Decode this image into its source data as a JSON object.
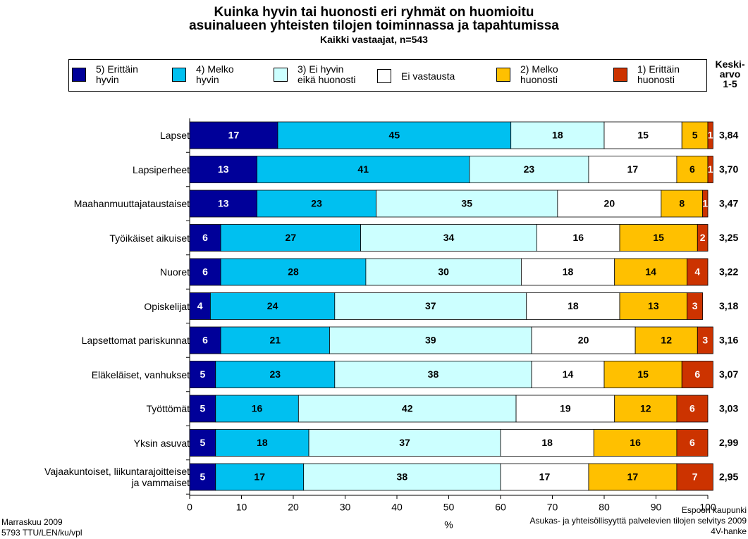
{
  "chart_data": {
    "type": "stacked-bar-horizontal",
    "title": "Kuinka hyvin tai huonosti eri ryhmät on huomioitu\nasuinalueen yhteisten tilojen toiminnassa ja tapahtumissa",
    "subtitle": "Kaikki vastaajat, n=543",
    "xlabel": "%",
    "xlim": [
      0,
      100
    ],
    "xticks": [
      0,
      10,
      20,
      30,
      40,
      50,
      60,
      70,
      80,
      90,
      100
    ],
    "categories": [
      "Lapset",
      "Lapsiperheet",
      "Maahanmuuttajataustaiset",
      "Työikäiset aikuiset",
      "Nuoret",
      "Opiskelijat",
      "Lapsettomat pariskunnat",
      "Eläkeläiset, vanhukset",
      "Työttömät",
      "Yksin asuvat",
      "Vajaakuntoiset, liikuntarajoitteiset\nja vammaiset"
    ],
    "series": [
      {
        "name": "5) Erittäin\nhyvin",
        "color": "#000099",
        "label_color": "#ffffff",
        "values": [
          17,
          13,
          13,
          6,
          6,
          4,
          6,
          5,
          5,
          5,
          5
        ]
      },
      {
        "name": "4) Melko\nhyvin",
        "color": "#00c0f0",
        "label_color": "#000000",
        "values": [
          45,
          41,
          23,
          27,
          28,
          24,
          21,
          23,
          16,
          18,
          17
        ]
      },
      {
        "name": "3) Ei hyvin\neikä huonosti",
        "color": "#ccffff",
        "label_color": "#000000",
        "values": [
          18,
          23,
          35,
          34,
          30,
          37,
          39,
          38,
          42,
          37,
          38
        ]
      },
      {
        "name": "Ei vastausta",
        "color": "#ffffff",
        "label_color": "#000000",
        "values": [
          15,
          17,
          20,
          16,
          18,
          18,
          20,
          14,
          19,
          18,
          17
        ]
      },
      {
        "name": "2) Melko\nhuonosti",
        "color": "#ffc000",
        "label_color": "#000000",
        "values": [
          5,
          6,
          8,
          15,
          14,
          13,
          12,
          15,
          12,
          16,
          17
        ]
      },
      {
        "name": "1) Erittäin\nhuonosti",
        "color": "#cc3300",
        "label_color": "#ffffff",
        "values": [
          1,
          1,
          1,
          2,
          4,
          3,
          3,
          6,
          6,
          6,
          7
        ]
      }
    ],
    "means": {
      "name": "Keski-\narvo\n1-5",
      "values": [
        3.84,
        3.7,
        3.47,
        3.25,
        3.22,
        3.18,
        3.16,
        3.07,
        3.03,
        2.99,
        2.95
      ],
      "value_labels": [
        "3,84",
        "3,70",
        "3,47",
        "3,25",
        "3,22",
        "3,18",
        "3,16",
        "3,07",
        "3,03",
        "2,99",
        "2,95"
      ]
    },
    "footer_left": [
      "Marraskuu 2009",
      "5793 TTU/LEN/ku/vpl"
    ],
    "footer_right": [
      "Espoon kaupunki",
      "Asukas- ja yhteisöllisyyttä palvelevien tilojen selvitys 2009",
      "4V-hanke"
    ]
  }
}
